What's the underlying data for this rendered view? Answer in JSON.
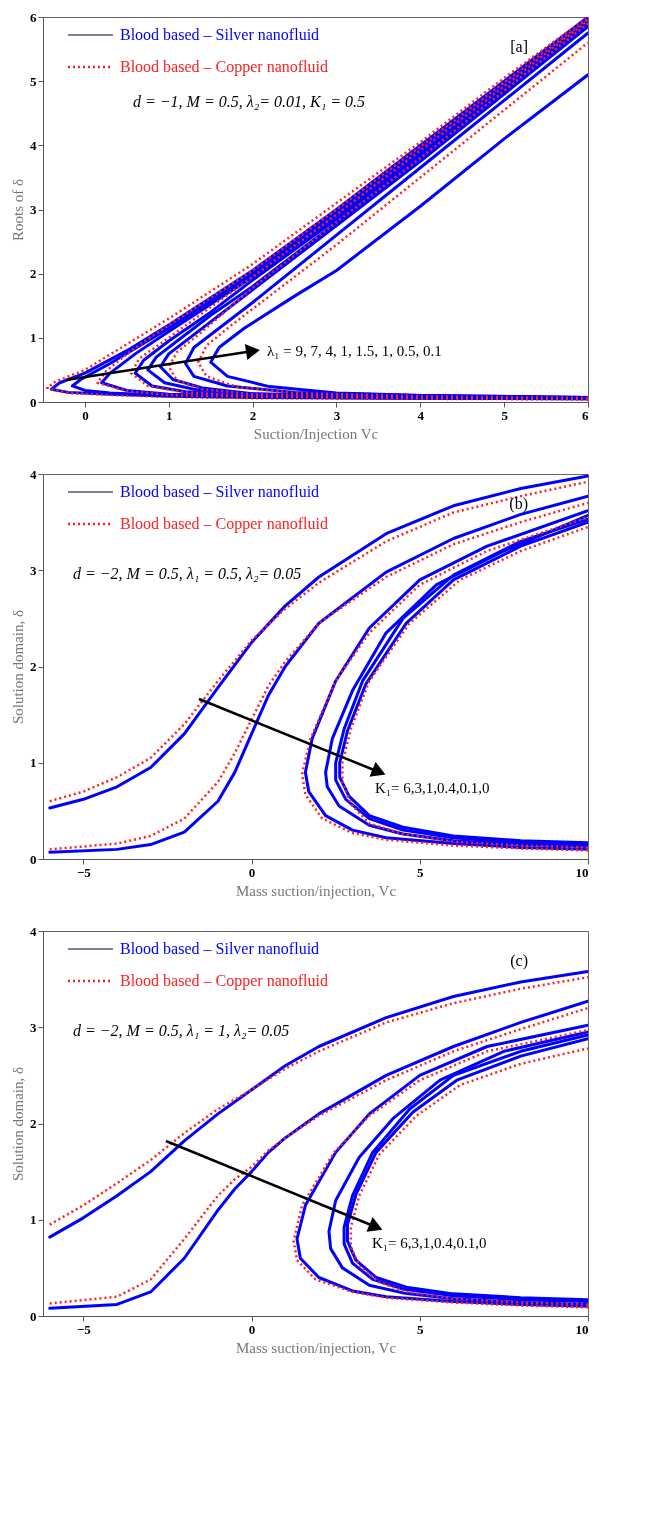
{
  "chart_data": [
    {
      "type": "line",
      "xlabel": "Suction/Injection Vc",
      "ylabel": "Roots of δ",
      "xlim": [
        -0.5,
        6
      ],
      "ylim": [
        0,
        6
      ],
      "xticks": [
        0,
        1,
        2,
        3,
        4,
        5,
        6
      ],
      "yticks": [
        0,
        1,
        2,
        3,
        4,
        5,
        6
      ],
      "legend": "top left",
      "annotations": [
        "d = −1,  M = 0.5,  λ₂= 0.01, K₁ = 0.5",
        "[a]",
        "λ₁ =  9, 7, 4, 1, 1.5, 1, 0.5, 0.1"
      ],
      "series": [
        {
          "name": "Blood based – Silver nanofluid",
          "color": "#0000ff",
          "line_style": "solid",
          "x": [
            6,
            4,
            2,
            1,
            0.3,
            -0.2,
            -0.4,
            -0.3,
            0,
            0.5,
            1,
            2,
            3,
            4,
            5,
            6
          ],
          "values": [
            0.05,
            0.06,
            0.07,
            0.09,
            0.12,
            0.15,
            0.2,
            0.3,
            0.45,
            0.8,
            1.2,
            2.05,
            3.0,
            4.0,
            5.0,
            6.0
          ]
        },
        {
          "name": "Blood based – Copper nanofluid",
          "color": "#ff2020",
          "line_style": "dotted",
          "x": [
            6,
            4,
            2,
            1,
            0.3,
            -0.2,
            -0.45,
            -0.35,
            0,
            0.5,
            1,
            2,
            3,
            4,
            5,
            6
          ],
          "values": [
            0.04,
            0.05,
            0.06,
            0.08,
            0.11,
            0.14,
            0.22,
            0.32,
            0.5,
            0.9,
            1.3,
            2.15,
            3.1,
            4.05,
            5.05,
            6.0
          ]
        },
        {
          "color": "#0000ff",
          "line_style": "solid",
          "x": [
            6,
            4,
            2,
            1,
            0.3,
            0,
            -0.15,
            -0.05,
            0.3,
            1,
            2,
            3,
            4,
            5,
            6
          ],
          "values": [
            0.05,
            0.06,
            0.08,
            0.1,
            0.14,
            0.18,
            0.25,
            0.35,
            0.6,
            1.15,
            2.0,
            2.95,
            3.95,
            4.95,
            5.97
          ]
        },
        {
          "color": "#0000ff",
          "line_style": "solid",
          "x": [
            6,
            4,
            2,
            1,
            0.5,
            0.2,
            0.3,
            0.6,
            1,
            2,
            3,
            4,
            5,
            6
          ],
          "values": [
            0.06,
            0.07,
            0.09,
            0.12,
            0.18,
            0.3,
            0.45,
            0.75,
            1.1,
            1.95,
            2.9,
            3.9,
            4.9,
            5.93
          ]
        },
        {
          "color": "#0000ff",
          "line_style": "solid",
          "x": [
            6,
            4,
            2,
            1.2,
            0.8,
            0.6,
            0.7,
            1,
            1.5,
            2,
            3,
            4,
            5,
            6
          ],
          "values": [
            0.06,
            0.07,
            0.1,
            0.16,
            0.25,
            0.45,
            0.65,
            0.95,
            1.4,
            1.9,
            2.85,
            3.85,
            4.85,
            5.9
          ]
        },
        {
          "color": "#0000ff",
          "line_style": "solid",
          "x": [
            6,
            4,
            2,
            1.3,
            0.95,
            0.75,
            0.85,
            1.1,
            1.5,
            2,
            3,
            4,
            5,
            6
          ],
          "values": [
            0.06,
            0.08,
            0.12,
            0.2,
            0.3,
            0.5,
            0.7,
            0.95,
            1.35,
            1.8,
            2.8,
            3.8,
            4.85,
            5.88
          ]
        },
        {
          "color": "#0000ff",
          "line_style": "solid",
          "x": [
            6,
            4,
            2,
            1.4,
            1.05,
            0.9,
            1.0,
            1.3,
            2,
            3,
            4,
            5,
            6
          ],
          "values": [
            0.07,
            0.08,
            0.13,
            0.22,
            0.35,
            0.55,
            0.75,
            1.05,
            1.75,
            2.75,
            3.75,
            4.8,
            5.85
          ]
        },
        {
          "color": "#0000ff",
          "line_style": "solid",
          "x": [
            6,
            4,
            2.5,
            1.7,
            1.3,
            1.2,
            1.3,
            1.6,
            2,
            3,
            4,
            5,
            6
          ],
          "values": [
            0.07,
            0.1,
            0.15,
            0.25,
            0.4,
            0.6,
            0.85,
            1.15,
            1.55,
            2.6,
            3.65,
            4.7,
            5.75
          ]
        },
        {
          "color": "#0000ff",
          "line_style": "solid",
          "x": [
            6,
            4,
            3,
            2.2,
            1.7,
            1.5,
            1.6,
            1.9,
            2.5,
            3,
            4,
            5,
            6
          ],
          "values": [
            0.07,
            0.1,
            0.14,
            0.24,
            0.4,
            0.62,
            0.85,
            1.15,
            1.65,
            2.05,
            3.05,
            4.1,
            5.1
          ]
        },
        {
          "color": "#ff2020",
          "line_style": "dotted",
          "x": [
            6,
            4,
            2,
            1,
            0.5,
            0.15,
            0.25,
            0.55,
            1,
            2,
            3,
            4,
            5,
            6
          ],
          "values": [
            0.05,
            0.06,
            0.08,
            0.11,
            0.17,
            0.3,
            0.48,
            0.8,
            1.2,
            2.05,
            3.0,
            3.98,
            4.98,
            5.97
          ]
        },
        {
          "color": "#ff2020",
          "line_style": "dotted",
          "x": [
            6,
            4,
            2,
            1.2,
            0.75,
            0.55,
            0.65,
            1,
            1.5,
            2,
            3,
            4,
            5,
            6
          ],
          "values": [
            0.05,
            0.06,
            0.09,
            0.15,
            0.25,
            0.45,
            0.68,
            1.0,
            1.48,
            1.95,
            2.92,
            3.92,
            4.92,
            5.95
          ]
        },
        {
          "color": "#ff2020",
          "line_style": "dotted",
          "x": [
            6,
            4,
            2,
            1.4,
            1.1,
            1.0,
            1.1,
            1.4,
            2,
            3,
            4,
            5,
            6
          ],
          "values": [
            0.06,
            0.07,
            0.12,
            0.2,
            0.33,
            0.55,
            0.78,
            1.1,
            1.78,
            2.8,
            3.8,
            4.85,
            5.9
          ]
        },
        {
          "color": "#ff2020",
          "line_style": "dotted",
          "x": [
            6,
            4,
            2.5,
            1.8,
            1.45,
            1.35,
            1.45,
            1.75,
            2.2,
            3,
            4,
            5,
            6
          ],
          "values": [
            0.06,
            0.09,
            0.14,
            0.24,
            0.4,
            0.62,
            0.88,
            1.2,
            1.65,
            2.45,
            3.5,
            4.55,
            5.6
          ]
        }
      ]
    },
    {
      "type": "line",
      "xlabel": "Mass suction/injection, Vc",
      "ylabel": "Solution domain, δ",
      "xlim": [
        -6.2,
        10
      ],
      "ylim": [
        0,
        4
      ],
      "xticks": [
        -5,
        0,
        5,
        10
      ],
      "yticks": [
        0,
        1,
        2,
        3,
        4
      ],
      "legend": "top left",
      "annotations": [
        "d = −2, M = 0.5, λ₁ = 0.5, λ₂= 0.05",
        "(b)",
        "K₁= 6,3,1,0.4,0.1,0"
      ],
      "series": [
        {
          "name": "Blood based – Silver nanofluid",
          "color": "#0000ff",
          "line_style": "solid",
          "x": [
            -6,
            -5,
            -4,
            -3,
            -2,
            -1,
            0,
            1,
            2,
            4,
            6,
            8,
            10
          ],
          "values": [
            0.53,
            0.62,
            0.75,
            0.95,
            1.3,
            1.78,
            2.25,
            2.63,
            2.93,
            3.38,
            3.67,
            3.85,
            3.98
          ]
        },
        {
          "name": "Blood based – Copper nanofluid",
          "color": "#ff2020",
          "line_style": "dotted",
          "x": [
            -6,
            -5,
            -4,
            -3,
            -2,
            -1,
            0,
            1,
            2,
            4,
            6,
            8,
            10
          ],
          "values": [
            0.6,
            0.7,
            0.85,
            1.05,
            1.4,
            1.85,
            2.27,
            2.6,
            2.87,
            3.3,
            3.6,
            3.77,
            3.92
          ]
        },
        {
          "color": "#0000ff",
          "line_style": "solid",
          "x": [
            -6,
            -4,
            -3,
            -2,
            -1,
            -0.5,
            0,
            0.5,
            1,
            2,
            4,
            6,
            8,
            10
          ],
          "values": [
            0.07,
            0.1,
            0.15,
            0.28,
            0.6,
            0.9,
            1.3,
            1.7,
            2.0,
            2.45,
            2.98,
            3.33,
            3.58,
            3.77
          ]
        },
        {
          "color": "#0000ff",
          "line_style": "solid",
          "x": [
            10,
            8,
            6,
            4,
            3,
            2.2,
            1.7,
            1.6,
            1.8,
            2.5,
            3.5,
            5,
            7,
            10
          ],
          "values": [
            0.1,
            0.12,
            0.16,
            0.22,
            0.3,
            0.45,
            0.7,
            0.9,
            1.25,
            1.85,
            2.4,
            2.9,
            3.25,
            3.62
          ]
        },
        {
          "color": "#0000ff",
          "line_style": "solid",
          "x": [
            10,
            8,
            6,
            4.5,
            3.5,
            2.6,
            2.25,
            2.2,
            2.4,
            3,
            4,
            5.5,
            7.5,
            10
          ],
          "values": [
            0.13,
            0.15,
            0.19,
            0.26,
            0.35,
            0.55,
            0.75,
            0.9,
            1.25,
            1.75,
            2.35,
            2.85,
            3.2,
            3.57
          ]
        },
        {
          "color": "#0000ff",
          "line_style": "solid",
          "x": [
            10,
            8,
            6,
            4.5,
            3.5,
            2.8,
            2.5,
            2.5,
            2.75,
            3.3,
            4.5,
            6,
            8,
            10
          ],
          "values": [
            0.15,
            0.17,
            0.22,
            0.3,
            0.42,
            0.62,
            0.82,
            1.0,
            1.35,
            1.85,
            2.5,
            2.95,
            3.3,
            3.53
          ]
        },
        {
          "color": "#0000ff",
          "line_style": "solid",
          "x": [
            10,
            8,
            6,
            4.5,
            3.5,
            2.9,
            2.62,
            2.62,
            2.85,
            3.4,
            4.6,
            6,
            8,
            10
          ],
          "values": [
            0.17,
            0.19,
            0.24,
            0.33,
            0.45,
            0.65,
            0.85,
            1.0,
            1.33,
            1.82,
            2.45,
            2.9,
            3.25,
            3.5
          ]
        },
        {
          "color": "#ff2020",
          "line_style": "dotted",
          "x": [
            -6,
            -4,
            -3,
            -2,
            -1,
            -0.5,
            0,
            0.5,
            1,
            2,
            4,
            6,
            8,
            10
          ],
          "values": [
            0.1,
            0.16,
            0.24,
            0.42,
            0.8,
            1.1,
            1.45,
            1.8,
            2.05,
            2.45,
            2.93,
            3.27,
            3.5,
            3.7
          ]
        },
        {
          "color": "#ff2020",
          "line_style": "dotted",
          "x": [
            10,
            8,
            6,
            4,
            3,
            2.1,
            1.6,
            1.5,
            1.75,
            2.5,
            3.5,
            5,
            7,
            10
          ],
          "values": [
            0.09,
            0.11,
            0.14,
            0.2,
            0.27,
            0.42,
            0.67,
            0.88,
            1.25,
            1.85,
            2.35,
            2.85,
            3.2,
            3.55
          ]
        },
        {
          "color": "#ff2020",
          "line_style": "dotted",
          "x": [
            10,
            8,
            6,
            4.5,
            3.5,
            2.95,
            2.7,
            2.7,
            2.95,
            3.5,
            4.7,
            6.2,
            8,
            10
          ],
          "values": [
            0.12,
            0.14,
            0.18,
            0.26,
            0.37,
            0.57,
            0.8,
            1.0,
            1.35,
            1.85,
            2.45,
            2.9,
            3.2,
            3.45
          ]
        }
      ]
    },
    {
      "type": "line",
      "xlabel": "Mass suction/injection, Vc",
      "ylabel": "Solution domain, δ",
      "xlim": [
        -6.2,
        10
      ],
      "ylim": [
        0,
        4
      ],
      "xticks": [
        -5,
        0,
        5,
        10
      ],
      "yticks": [
        0,
        1,
        2,
        3,
        4
      ],
      "legend": "top left",
      "annotations": [
        "d = −2, M = 0.5, λ₁ = 1, λ₂= 0.05",
        "(c)",
        "K₁= 6,3,1,0.4,0.1,0"
      ],
      "series": [
        {
          "name": "Blood based – Silver nanofluid",
          "color": "#0000ff",
          "line_style": "solid",
          "x": [
            -6,
            -5,
            -4,
            -3,
            -2,
            -1,
            0,
            1,
            2,
            4,
            6,
            8,
            10
          ],
          "values": [
            0.82,
            1.02,
            1.25,
            1.5,
            1.82,
            2.1,
            2.35,
            2.6,
            2.8,
            3.1,
            3.32,
            3.47,
            3.58
          ]
        },
        {
          "name": "Blood based – Copper nanofluid",
          "color": "#ff2020",
          "line_style": "dotted",
          "x": [
            -6,
            -5,
            -4,
            -3,
            -2,
            -1,
            0,
            1,
            2,
            4,
            6,
            8,
            10
          ],
          "values": [
            0.95,
            1.15,
            1.38,
            1.62,
            1.9,
            2.15,
            2.35,
            2.57,
            2.75,
            3.05,
            3.25,
            3.4,
            3.52
          ]
        },
        {
          "color": "#0000ff",
          "line_style": "solid",
          "x": [
            -6,
            -4,
            -3,
            -2,
            -1,
            -0.5,
            0,
            0.5,
            1,
            2,
            4,
            6,
            8,
            10
          ],
          "values": [
            0.08,
            0.12,
            0.25,
            0.6,
            1.1,
            1.32,
            1.5,
            1.7,
            1.85,
            2.1,
            2.5,
            2.8,
            3.05,
            3.27
          ]
        },
        {
          "color": "#0000ff",
          "line_style": "solid",
          "x": [
            10,
            8,
            6,
            4,
            3,
            2,
            1.45,
            1.35,
            1.6,
            2.5,
            3.5,
            5,
            7,
            10
          ],
          "values": [
            0.1,
            0.12,
            0.15,
            0.2,
            0.26,
            0.4,
            0.6,
            0.8,
            1.15,
            1.7,
            2.1,
            2.5,
            2.8,
            3.02
          ]
        },
        {
          "color": "#0000ff",
          "line_style": "solid",
          "x": [
            10,
            8,
            6,
            4.5,
            3.5,
            2.7,
            2.35,
            2.3,
            2.5,
            3.2,
            4.2,
            5.6,
            7.5,
            10
          ],
          "values": [
            0.12,
            0.14,
            0.18,
            0.24,
            0.32,
            0.5,
            0.7,
            0.88,
            1.2,
            1.65,
            2.05,
            2.45,
            2.75,
            2.95
          ]
        },
        {
          "color": "#0000ff",
          "line_style": "solid",
          "x": [
            10,
            8,
            6,
            4.5,
            3.6,
            3.0,
            2.75,
            2.75,
            3.0,
            3.6,
            4.7,
            6,
            8,
            10
          ],
          "values": [
            0.15,
            0.17,
            0.21,
            0.28,
            0.38,
            0.55,
            0.75,
            0.92,
            1.25,
            1.7,
            2.15,
            2.5,
            2.75,
            2.92
          ]
        },
        {
          "color": "#0000ff",
          "line_style": "solid",
          "x": [
            10,
            8,
            6,
            4.6,
            3.7,
            3.1,
            2.85,
            2.85,
            3.1,
            3.7,
            4.8,
            6.1,
            8,
            10
          ],
          "values": [
            0.17,
            0.19,
            0.23,
            0.3,
            0.4,
            0.58,
            0.78,
            0.95,
            1.26,
            1.7,
            2.12,
            2.45,
            2.7,
            2.88
          ]
        },
        {
          "color": "#ff2020",
          "line_style": "dotted",
          "x": [
            -6,
            -4,
            -3,
            -2,
            -1,
            -0.5,
            0,
            0.5,
            1,
            2,
            4,
            6,
            8,
            10
          ],
          "values": [
            0.13,
            0.2,
            0.38,
            0.8,
            1.25,
            1.42,
            1.55,
            1.72,
            1.85,
            2.08,
            2.45,
            2.75,
            2.98,
            3.2
          ]
        },
        {
          "color": "#ff2020",
          "line_style": "dotted",
          "x": [
            10,
            8,
            6,
            4,
            3,
            1.9,
            1.35,
            1.25,
            1.5,
            2.45,
            3.5,
            5,
            7,
            10
          ],
          "values": [
            0.09,
            0.11,
            0.14,
            0.19,
            0.25,
            0.38,
            0.58,
            0.78,
            1.15,
            1.7,
            2.08,
            2.45,
            2.75,
            2.97
          ]
        },
        {
          "color": "#ff2020",
          "line_style": "dotted",
          "x": [
            10,
            8,
            6,
            4.6,
            3.8,
            3.2,
            2.95,
            2.95,
            3.2,
            3.8,
            4.9,
            6.2,
            8,
            10
          ],
          "values": [
            0.12,
            0.14,
            0.18,
            0.25,
            0.35,
            0.52,
            0.72,
            0.92,
            1.25,
            1.68,
            2.08,
            2.4,
            2.62,
            2.78
          ]
        }
      ]
    }
  ]
}
